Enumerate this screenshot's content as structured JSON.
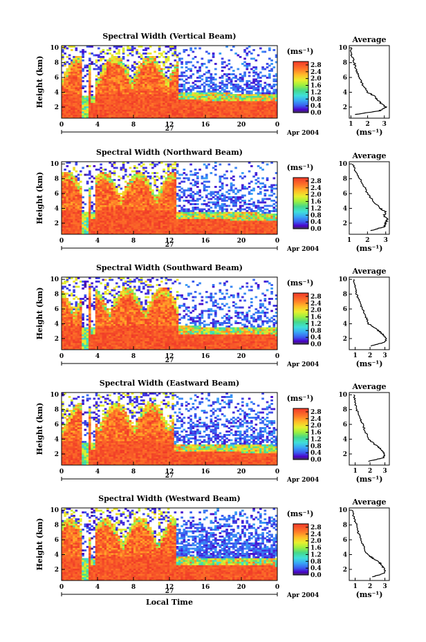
{
  "chart_data": [
    {
      "type": "heatmap",
      "title": "Spectral Width (Vertical Beam)",
      "ylabel": "Height (km)",
      "xlabel": "",
      "xticks": [
        "0",
        "4",
        "8",
        "12",
        "16",
        "20",
        "0"
      ],
      "yticks": [
        "2",
        "4",
        "6",
        "8",
        "10"
      ],
      "xlim": [
        0,
        24
      ],
      "ylim": [
        0.5,
        10.3
      ],
      "day_label": "27",
      "date_label": "Apr 2004",
      "colorbar": {
        "unit": "(ms⁻¹)",
        "ticks": [
          "0.0",
          "0.4",
          "0.8",
          "1.2",
          "1.6",
          "2.0",
          "2.4",
          "2.8"
        ],
        "range": [
          0,
          3.0
        ]
      },
      "profile": {
        "title": "Average",
        "xlabel": "(ms⁻¹)",
        "xticks": [
          "1",
          "2",
          "3"
        ],
        "xlim": [
          0.9,
          3.3
        ],
        "yticks": [
          "2",
          "4",
          "6",
          "8",
          "10"
        ],
        "ylim": [
          0.5,
          10.3
        ],
        "h": [
          1,
          1.5,
          2,
          2.5,
          3,
          3.5,
          4,
          5,
          6,
          7,
          8,
          9,
          10
        ],
        "v": [
          1.3,
          2.7,
          3.1,
          2.8,
          2.6,
          2.4,
          2.0,
          1.7,
          1.5,
          1.3,
          1.2,
          1.05,
          1.0
        ]
      },
      "params": {
        "top": 13.0,
        "edge": 3.6,
        "fill": 0.6
      }
    },
    {
      "type": "heatmap",
      "title": "Spectral Width (Northward Beam)",
      "ylabel": "Height (km)",
      "xlabel": "",
      "xticks": [
        "0",
        "4",
        "8",
        "12",
        "16",
        "20",
        "0"
      ],
      "yticks": [
        "2",
        "4",
        "6",
        "8",
        "10"
      ],
      "xlim": [
        0,
        24
      ],
      "ylim": [
        0.5,
        10.3
      ],
      "day_label": "27",
      "date_label": "Apr 2004",
      "colorbar": {
        "unit": "(ms⁻¹)",
        "ticks": [
          "0.0",
          "0.4",
          "0.8",
          "1.2",
          "1.6",
          "2.0",
          "2.4",
          "2.8"
        ],
        "range": [
          0,
          3.0
        ]
      },
      "profile": {
        "title": "Average",
        "xlabel": "(ms⁻¹)",
        "xticks": [
          "1",
          "2",
          "3"
        ],
        "xlim": [
          1.0,
          3.2
        ],
        "yticks": [
          "2",
          "4",
          "6",
          "8",
          "10"
        ],
        "ylim": [
          0.5,
          10.3
        ],
        "h": [
          1,
          1.5,
          2,
          2.5,
          3,
          3.5,
          4,
          5,
          6,
          7,
          8,
          9,
          10
        ],
        "v": [
          2.2,
          2.9,
          3.0,
          3.1,
          2.9,
          3.0,
          2.7,
          2.3,
          2.0,
          1.8,
          1.6,
          1.3,
          1.2
        ]
      },
      "params": {
        "top": 12.8,
        "edge": 3.2,
        "fill": 0.55
      }
    },
    {
      "type": "heatmap",
      "title": "Spectral Width (Southward Beam)",
      "ylabel": "Height (km)",
      "xlabel": "",
      "xticks": [
        "0",
        "4",
        "8",
        "12",
        "16",
        "20",
        "0"
      ],
      "yticks": [
        "2",
        "4",
        "6",
        "8",
        "10"
      ],
      "xlim": [
        0,
        24
      ],
      "ylim": [
        0.5,
        10.3
      ],
      "day_label": "27",
      "date_label": "Apr 2004",
      "colorbar": {
        "unit": "(ms⁻¹)",
        "ticks": [
          "0.0",
          "0.4",
          "0.8",
          "1.2",
          "1.6",
          "2.0",
          "2.4",
          "2.8"
        ],
        "range": [
          0,
          3.0
        ]
      },
      "profile": {
        "title": "Average",
        "xlabel": "(ms⁻¹)",
        "xticks": [
          "1",
          "2",
          "3"
        ],
        "xlim": [
          0.6,
          3.3
        ],
        "yticks": [
          "2",
          "4",
          "6",
          "8",
          "10"
        ],
        "ylim": [
          0.5,
          10.3
        ],
        "h": [
          1,
          1.5,
          2,
          2.5,
          3,
          3.5,
          4,
          5,
          6,
          7,
          8,
          9,
          10
        ],
        "v": [
          2.0,
          3.0,
          3.1,
          2.9,
          2.6,
          2.3,
          1.9,
          1.7,
          1.5,
          1.3,
          1.1,
          1.0,
          0.9
        ]
      },
      "params": {
        "top": 13.0,
        "edge": 3.3,
        "fill": 0.5
      }
    },
    {
      "type": "heatmap",
      "title": "Spectral Width (Eastward Beam)",
      "ylabel": "Height (km)",
      "xlabel": "",
      "xticks": [
        "0",
        "4",
        "8",
        "12",
        "16",
        "20",
        "0"
      ],
      "yticks": [
        "2",
        "4",
        "6",
        "8",
        "10"
      ],
      "xlim": [
        0,
        24
      ],
      "ylim": [
        0.5,
        10.3
      ],
      "day_label": "27",
      "date_label": "Apr 2004",
      "colorbar": {
        "unit": "(ms⁻¹)",
        "ticks": [
          "0.0",
          "0.4",
          "0.8",
          "1.2",
          "1.6",
          "2.0",
          "2.4",
          "2.8"
        ],
        "range": [
          0,
          3.0
        ]
      },
      "profile": {
        "title": "Average",
        "xlabel": "(ms⁻¹)",
        "xticks": [
          "1",
          "2",
          "3"
        ],
        "xlim": [
          0.6,
          3.3
        ],
        "yticks": [
          "2",
          "4",
          "6",
          "8",
          "10"
        ],
        "ylim": [
          0.5,
          10.3
        ],
        "h": [
          1,
          1.5,
          2,
          2.5,
          3,
          3.5,
          4,
          5,
          6,
          7,
          8,
          9,
          10
        ],
        "v": [
          1.9,
          2.9,
          3.0,
          2.8,
          2.5,
          2.2,
          1.9,
          1.7,
          1.5,
          1.3,
          1.1,
          1.0,
          0.9
        ]
      },
      "params": {
        "top": 12.6,
        "edge": 3.0,
        "fill": 0.55
      }
    },
    {
      "type": "heatmap",
      "title": "Spectral Width (Westward Beam)",
      "ylabel": "Height (km)",
      "xlabel": "Local Time",
      "xticks": [
        "0",
        "4",
        "8",
        "12",
        "16",
        "20",
        "0"
      ],
      "yticks": [
        "2",
        "4",
        "6",
        "8",
        "10"
      ],
      "xlim": [
        0,
        24
      ],
      "ylim": [
        0.5,
        10.3
      ],
      "day_label": "27",
      "date_label": "Apr 2004",
      "colorbar": {
        "unit": "(ms⁻¹)",
        "ticks": [
          "0.0",
          "0.4",
          "0.8",
          "1.2",
          "1.6",
          "2.0",
          "2.4",
          "2.8"
        ],
        "range": [
          0,
          3.0
        ]
      },
      "profile": {
        "title": "Average",
        "xlabel": "(ms⁻¹)",
        "xticks": [
          "1",
          "2",
          "3"
        ],
        "xlim": [
          0.6,
          3.3
        ],
        "yticks": [
          "2",
          "4",
          "6",
          "8",
          "10"
        ],
        "ylim": [
          0.5,
          10.3
        ],
        "h": [
          1,
          1.5,
          2,
          2.5,
          3,
          3.5,
          4,
          5,
          6,
          7,
          8,
          9,
          10
        ],
        "v": [
          2.2,
          3.0,
          3.0,
          2.8,
          2.6,
          2.2,
          1.8,
          1.6,
          1.4,
          1.2,
          1.1,
          0.9,
          0.8
        ]
      },
      "params": {
        "top": 12.8,
        "edge": 3.3,
        "fill": 0.85
      }
    }
  ]
}
